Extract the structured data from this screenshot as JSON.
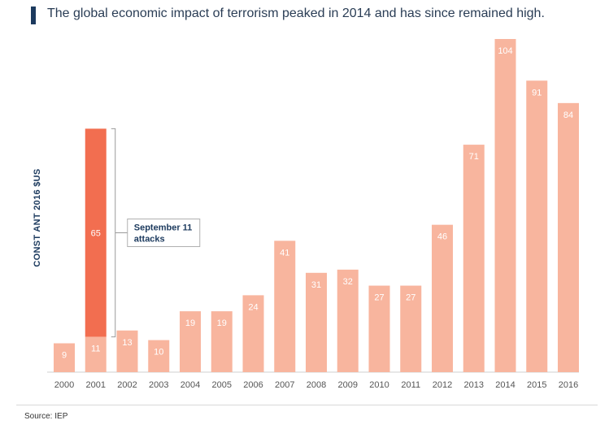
{
  "chart_data": {
    "type": "bar",
    "title": "",
    "subtitle": "The global economic impact of terrorism peaked in 2014 and has since remained high.",
    "ylabel": "CONST ANT 2016 $US",
    "xlabel": "",
    "ylim": [
      0,
      104
    ],
    "grid": false,
    "categories": [
      "2000",
      "2001",
      "2002",
      "2003",
      "2004",
      "2005",
      "2006",
      "2007",
      "2008",
      "2009",
      "2010",
      "2011",
      "2012",
      "2013",
      "2014",
      "2015",
      "2016"
    ],
    "series": [
      {
        "values": [
          9,
          11,
          13,
          10,
          19,
          19,
          24,
          41,
          31,
          32,
          27,
          27,
          46,
          71,
          104,
          91,
          84
        ]
      }
    ],
    "highlight": {
      "category": "2001",
      "value": 65,
      "label": "September 11 attacks",
      "color": "#f26e50"
    },
    "colors": {
      "bar": "#f8b59e",
      "highlight": "#f26e50",
      "label": "#ffffff",
      "axis": "#cfcfcf"
    },
    "source": "Source: IEP"
  }
}
